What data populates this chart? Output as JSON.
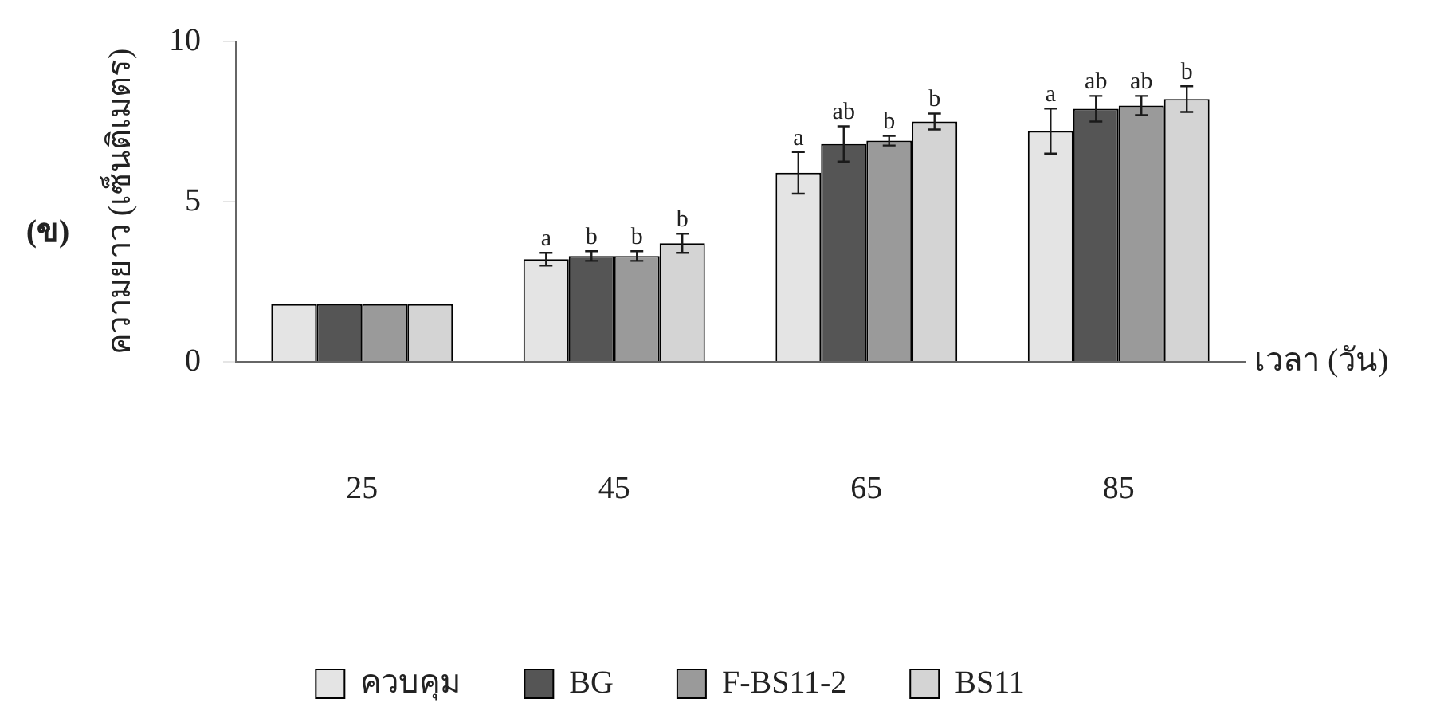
{
  "chart_data": {
    "type": "bar",
    "xlabel": "เวลา (วัน)",
    "ylabel": "ความยาว (เซ็นติเมตร)",
    "categories": [
      "25",
      "45",
      "65",
      "85"
    ],
    "series": [
      {
        "name": "ควบคุม",
        "color": "#e4e4e4",
        "values": [
          1.8,
          3.2,
          5.9,
          7.2
        ],
        "errors": [
          null,
          0.2,
          0.65,
          0.7
        ]
      },
      {
        "name": "BG",
        "color": "#555555",
        "values": [
          1.8,
          3.3,
          6.8,
          7.9
        ],
        "errors": [
          null,
          0.15,
          0.55,
          0.4
        ]
      },
      {
        "name": "F-BS11-2",
        "color": "#9a9a9a",
        "values": [
          1.8,
          3.3,
          6.9,
          8.0
        ],
        "errors": [
          null,
          0.15,
          0.15,
          0.3
        ]
      },
      {
        "name": "BS11",
        "color": "#d4d4d4",
        "values": [
          1.8,
          3.7,
          7.5,
          8.2
        ],
        "errors": [
          null,
          0.3,
          0.25,
          0.4
        ]
      }
    ],
    "ylim": [
      0,
      10
    ],
    "yticks": [
      0,
      5,
      10
    ],
    "grid": false,
    "legend": "bottom",
    "annotations": [
      "(ข)",
      "a",
      "b",
      "b",
      "b",
      "a",
      "ab",
      "b",
      "b",
      "a",
      "ab",
      "ab",
      "b"
    ]
  }
}
